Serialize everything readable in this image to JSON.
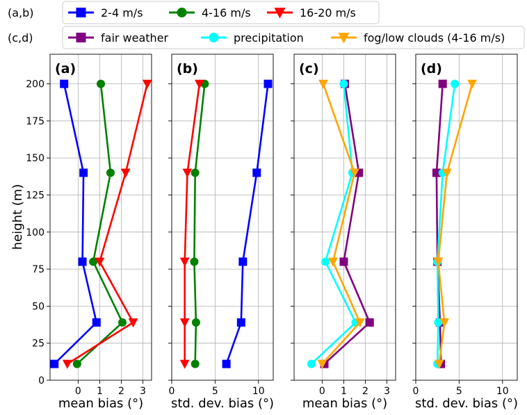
{
  "chart_data": {
    "type": "line",
    "ylabel": "height (m)",
    "ylim": [
      0,
      220
    ],
    "yticks": [
      0,
      25,
      50,
      75,
      100,
      125,
      150,
      175,
      200
    ],
    "grid": true,
    "legends": [
      {
        "tag": "(a,b)",
        "placement": "top",
        "entries": [
          {
            "label": "2-4 m/s",
            "color": "#0000ff",
            "marker": "square"
          },
          {
            "label": "4-16 m/s",
            "color": "#008000",
            "marker": "circle"
          },
          {
            "label": "16-20 m/s",
            "color": "#ff0000",
            "marker": "triangle-down"
          }
        ]
      },
      {
        "tag": "(c,d)",
        "placement": "top",
        "entries": [
          {
            "label": "fair weather",
            "color": "#800080",
            "marker": "square"
          },
          {
            "label": "precipitation",
            "color": "#00ffff",
            "marker": "circle"
          },
          {
            "label": "fog/low clouds  (4-16 m/s)",
            "color": "#ffa500",
            "marker": "triangle-down"
          }
        ]
      }
    ],
    "panels": [
      {
        "label": "(a)",
        "xlabel": "mean bias (°)",
        "xlim": [
          -1.3,
          3.4
        ],
        "xticks": [
          0,
          1,
          2,
          3
        ],
        "series": [
          {
            "name": "2-4 m/s",
            "color": "#0000ff",
            "marker": "square",
            "x": [
              -1.1,
              0.85,
              0.2,
              0.25,
              -0.65
            ],
            "y": [
              11,
              39,
              80,
              140,
              200
            ]
          },
          {
            "name": "4-16 m/s",
            "color": "#008000",
            "marker": "circle",
            "x": [
              -0.05,
              2.05,
              0.7,
              1.5,
              1.05
            ],
            "y": [
              11,
              39,
              80,
              140,
              200
            ]
          },
          {
            "name": "16-20 m/s",
            "color": "#ff0000",
            "marker": "triangle-down",
            "x": [
              -0.5,
              2.55,
              1.0,
              2.2,
              3.2
            ],
            "y": [
              11,
              39,
              80,
              140,
              200
            ]
          }
        ]
      },
      {
        "label": "(b)",
        "xlabel": "std. dev. bias (°)",
        "xlim": [
          0,
          11.7
        ],
        "xticks": [
          0,
          5,
          10
        ],
        "series": [
          {
            "name": "2-4 m/s",
            "color": "#0000ff",
            "marker": "square",
            "x": [
              6.3,
              8.0,
              8.2,
              9.8,
              11.1
            ],
            "y": [
              11,
              39,
              80,
              140,
              200
            ]
          },
          {
            "name": "4-16 m/s",
            "color": "#008000",
            "marker": "circle",
            "x": [
              2.7,
              2.8,
              2.6,
              2.7,
              3.8
            ],
            "y": [
              11,
              39,
              80,
              140,
              200
            ]
          },
          {
            "name": "16-20 m/s",
            "color": "#ff0000",
            "marker": "triangle-down",
            "x": [
              1.5,
              1.5,
              1.5,
              1.8,
              3.2
            ],
            "y": [
              11,
              39,
              80,
              140,
              200
            ]
          }
        ]
      },
      {
        "label": "(c)",
        "xlabel": "mean bias (°)",
        "xlim": [
          -1.3,
          3.4
        ],
        "xticks": [
          0,
          1,
          2,
          3
        ],
        "series": [
          {
            "name": "fair weather",
            "color": "#800080",
            "marker": "square",
            "x": [
              0.1,
              2.2,
              1.0,
              1.7,
              1.05
            ],
            "y": [
              11,
              39,
              80,
              140,
              200
            ]
          },
          {
            "name": "precipitation",
            "color": "#00ffff",
            "marker": "circle",
            "x": [
              -0.5,
              1.55,
              0.15,
              1.4,
              1.0
            ],
            "y": [
              11,
              39,
              80,
              140,
              200
            ]
          },
          {
            "name": "fog/low clouds  (4-16 m/s)",
            "color": "#ffa500",
            "marker": "triangle-down",
            "x": [
              0.0,
              1.75,
              0.5,
              1.5,
              0.05
            ],
            "y": [
              11,
              39,
              80,
              140,
              200
            ]
          }
        ]
      },
      {
        "label": "(d)",
        "xlabel": "std. dev. bias (°)",
        "xlim": [
          0,
          11.7
        ],
        "xticks": [
          0,
          5,
          10
        ],
        "series": [
          {
            "name": "fair weather",
            "color": "#800080",
            "marker": "square",
            "x": [
              2.9,
              2.8,
              2.5,
              2.4,
              3.1
            ],
            "y": [
              11,
              39,
              80,
              140,
              200
            ]
          },
          {
            "name": "precipitation",
            "color": "#00ffff",
            "marker": "circle",
            "x": [
              2.5,
              2.6,
              2.5,
              3.1,
              4.5
            ],
            "y": [
              11,
              39,
              80,
              140,
              200
            ]
          },
          {
            "name": "fog/low clouds  (4-16 m/s)",
            "color": "#ffa500",
            "marker": "triangle-down",
            "x": [
              2.7,
              3.3,
              2.6,
              3.6,
              6.5
            ],
            "y": [
              11,
              39,
              80,
              140,
              200
            ]
          }
        ]
      }
    ]
  }
}
